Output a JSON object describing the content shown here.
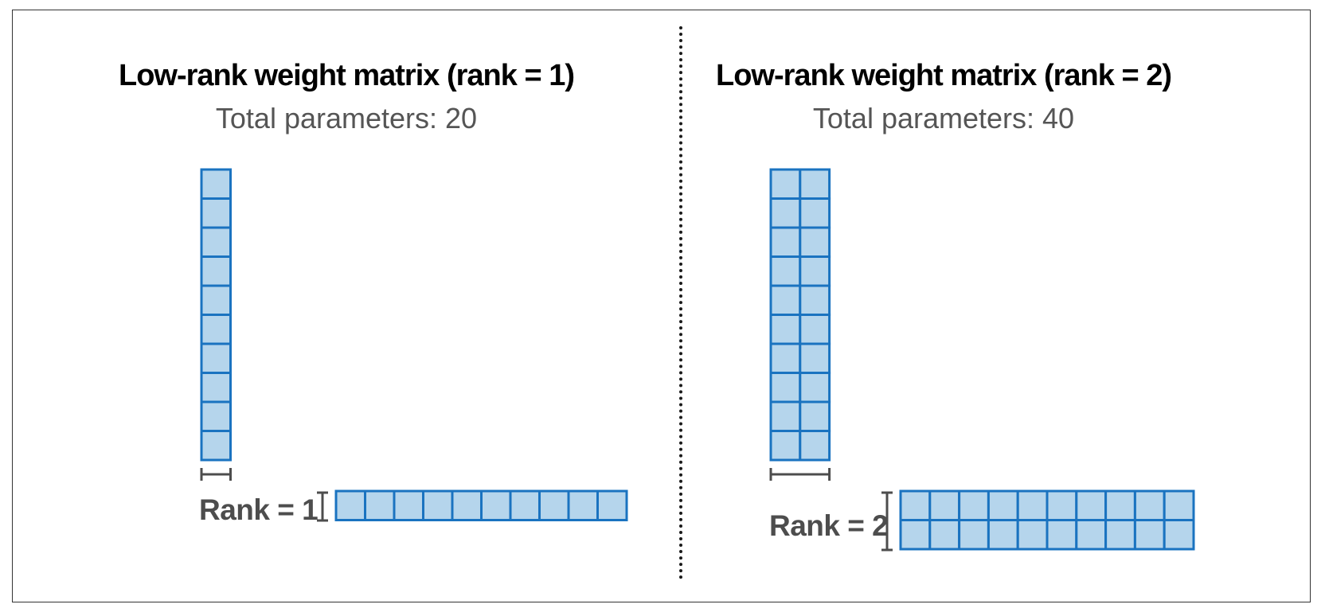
{
  "left": {
    "title": "Low-rank weight matrix (rank = 1)",
    "subtitle": "Total parameters: 20",
    "rank_label": "Rank = 1",
    "rank": 1,
    "matrix_rows": 10,
    "matrix_cols": 10
  },
  "right": {
    "title": "Low-rank weight matrix (rank = 2)",
    "subtitle": "Total parameters: 40",
    "rank_label": "Rank = 2",
    "rank": 2,
    "matrix_rows": 10,
    "matrix_cols": 10
  },
  "colors": {
    "cell_fill": "#b5d5ec",
    "cell_stroke": "#1a73c0",
    "bracket": "#4d4d4d",
    "divider": "#1a1a1a",
    "frame": "#333333"
  }
}
